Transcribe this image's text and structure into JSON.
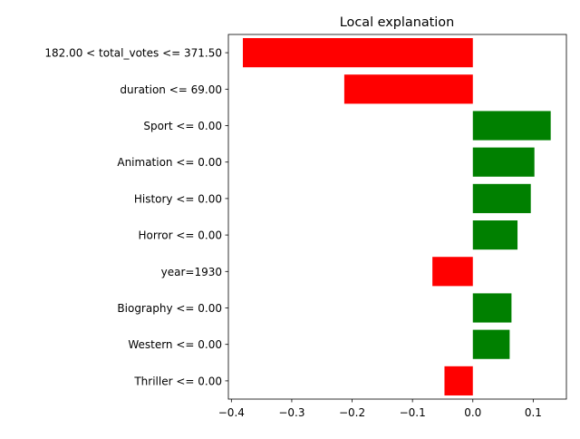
{
  "chart_data": {
    "type": "bar",
    "orientation": "horizontal",
    "title": "Local explanation",
    "xlabel": "",
    "ylabel": "",
    "xlim": [
      -0.405,
      0.155
    ],
    "xticks": [
      -0.4,
      -0.3,
      -0.2,
      -0.1,
      0.0,
      0.1
    ],
    "xtick_labels": [
      "−0.4",
      "−0.3",
      "−0.2",
      "−0.1",
      "0.0",
      "0.1"
    ],
    "grid": false,
    "categories": [
      "182.00 < total_votes <= 371.50",
      "duration <= 69.00",
      "Sport <= 0.00",
      "Animation <= 0.00",
      "History <= 0.00",
      "Horror <= 0.00",
      "year=1930",
      "Biography <= 0.00",
      "Western <= 0.00",
      "Thriller <= 0.00"
    ],
    "values": [
      -0.381,
      -0.213,
      0.129,
      0.102,
      0.096,
      0.074,
      -0.067,
      0.064,
      0.061,
      -0.047
    ],
    "colors": {
      "positive": "#008000",
      "negative": "#ff0000"
    }
  }
}
